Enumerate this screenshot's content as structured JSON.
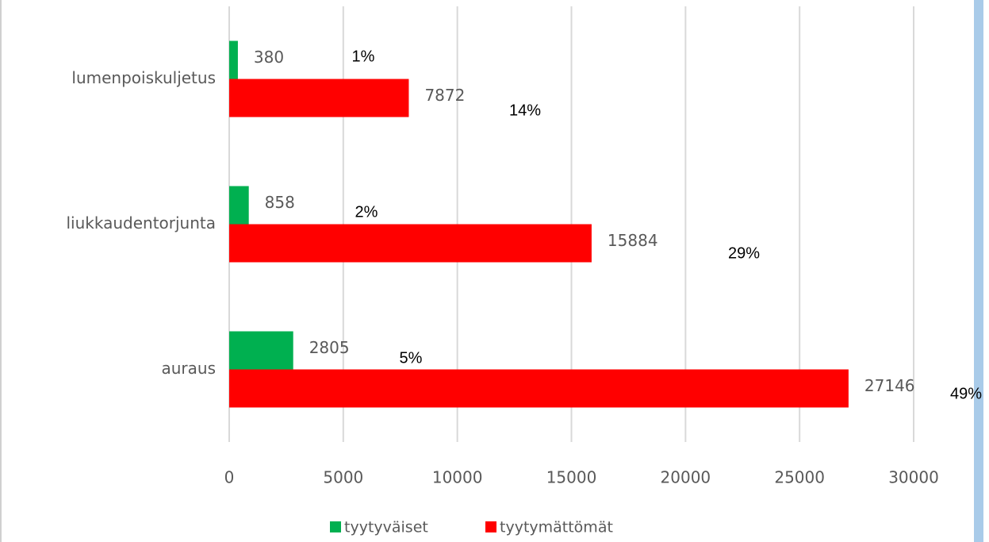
{
  "chart_data": {
    "type": "bar",
    "orientation": "horizontal",
    "categories": [
      "lumenpoiskuljetus",
      "liukkaudentorjunta",
      "auraus"
    ],
    "series": [
      {
        "name": "tyytyväiset",
        "color": "#00b050",
        "values": [
          380,
          858,
          2805
        ],
        "percent_labels": [
          "1%",
          "2%",
          "5%"
        ]
      },
      {
        "name": "tyytymättömät",
        "color": "#ff0000",
        "values": [
          7872,
          15884,
          27146
        ],
        "percent_labels": [
          "14%",
          "29%",
          "49%"
        ]
      }
    ],
    "xlim": [
      0,
      30000
    ],
    "xticks": [
      0,
      5000,
      10000,
      15000,
      20000,
      25000,
      30000
    ],
    "grid": true,
    "legend": "bottom"
  }
}
